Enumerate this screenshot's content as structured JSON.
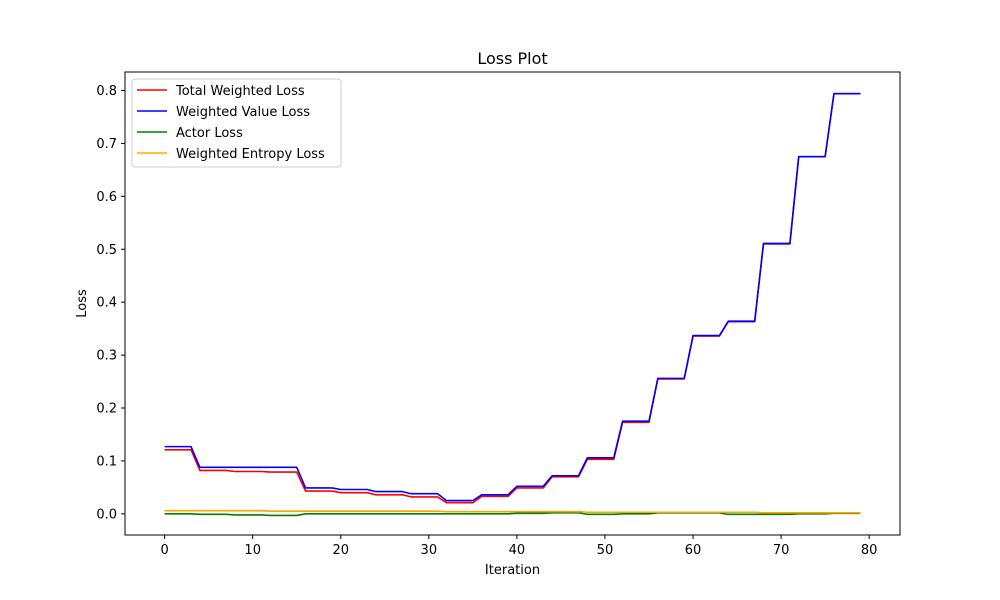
{
  "chart_data": {
    "type": "line",
    "title": "Loss Plot",
    "xlabel": "Iteration",
    "ylabel": "Loss",
    "xlim": [
      -4.5,
      83.5
    ],
    "ylim": [
      -0.04,
      0.835
    ],
    "xticks": [
      0,
      10,
      20,
      30,
      40,
      50,
      60,
      70,
      80
    ],
    "xtick_labels": [
      "0",
      "10",
      "20",
      "30",
      "40",
      "50",
      "60",
      "70",
      "80"
    ],
    "yticks": [
      0.0,
      0.1,
      0.2,
      0.3,
      0.4,
      0.5,
      0.6,
      0.7,
      0.8
    ],
    "ytick_labels": [
      "0.0",
      "0.1",
      "0.2",
      "0.3",
      "0.4",
      "0.5",
      "0.6",
      "0.7",
      "0.8"
    ],
    "grid": false,
    "legend_position": "upper-left",
    "series": [
      {
        "name": "Total Weighted Loss",
        "color": "#ff0000",
        "x": [
          0,
          3,
          4,
          7,
          8,
          11,
          12,
          15,
          16,
          19,
          20,
          23,
          24,
          27,
          28,
          31,
          32,
          35,
          36,
          39,
          40,
          43,
          44,
          47,
          48,
          51,
          52,
          55,
          56,
          59,
          60,
          63,
          64,
          67,
          68,
          71,
          72,
          75,
          76,
          79
        ],
        "y": [
          0.121,
          0.121,
          0.082,
          0.082,
          0.08,
          0.08,
          0.079,
          0.079,
          0.043,
          0.043,
          0.04,
          0.04,
          0.036,
          0.036,
          0.032,
          0.032,
          0.021,
          0.021,
          0.033,
          0.033,
          0.049,
          0.049,
          0.07,
          0.07,
          0.103,
          0.103,
          0.173,
          0.173,
          0.255,
          0.255,
          0.336,
          0.336,
          0.363,
          0.363,
          0.51,
          0.51,
          0.675,
          0.675,
          0.794,
          0.794
        ]
      },
      {
        "name": "Weighted Value Loss",
        "color": "#0000ff",
        "x": [
          0,
          3,
          4,
          7,
          8,
          11,
          12,
          15,
          16,
          19,
          20,
          23,
          24,
          27,
          28,
          31,
          32,
          35,
          36,
          39,
          40,
          43,
          44,
          47,
          48,
          51,
          52,
          55,
          56,
          59,
          60,
          63,
          64,
          67,
          68,
          71,
          72,
          75,
          76,
          79
        ],
        "y": [
          0.127,
          0.127,
          0.088,
          0.088,
          0.088,
          0.088,
          0.088,
          0.088,
          0.049,
          0.049,
          0.046,
          0.046,
          0.042,
          0.042,
          0.038,
          0.038,
          0.025,
          0.025,
          0.036,
          0.036,
          0.052,
          0.052,
          0.072,
          0.072,
          0.106,
          0.106,
          0.175,
          0.175,
          0.256,
          0.256,
          0.337,
          0.337,
          0.364,
          0.364,
          0.511,
          0.511,
          0.675,
          0.675,
          0.794,
          0.794
        ]
      },
      {
        "name": "Actor Loss",
        "color": "#008000",
        "x": [
          0,
          3,
          4,
          7,
          8,
          11,
          12,
          15,
          16,
          19,
          20,
          23,
          24,
          27,
          28,
          31,
          32,
          35,
          36,
          39,
          40,
          43,
          44,
          47,
          48,
          51,
          52,
          55,
          56,
          59,
          60,
          63,
          64,
          67,
          68,
          71,
          72,
          75,
          76,
          79
        ],
        "y": [
          0.0,
          0.0,
          -0.001,
          -0.001,
          -0.002,
          -0.002,
          -0.003,
          -0.003,
          0.0,
          0.0,
          0.0,
          0.0,
          0.0,
          0.0,
          0.0,
          0.0,
          0.0,
          0.0,
          0.0,
          0.0,
          0.001,
          0.001,
          0.002,
          0.002,
          -0.001,
          -0.001,
          0.0,
          0.0,
          0.002,
          0.002,
          0.002,
          0.002,
          -0.001,
          -0.001,
          -0.001,
          -0.001,
          0.0,
          0.0,
          0.001,
          0.001
        ]
      },
      {
        "name": "Weighted Entropy Loss",
        "color": "#ffa500",
        "x": [
          0,
          3,
          4,
          7,
          8,
          11,
          12,
          15,
          16,
          19,
          20,
          23,
          24,
          27,
          28,
          31,
          32,
          35,
          36,
          39,
          40,
          43,
          44,
          47,
          48,
          51,
          52,
          55,
          56,
          59,
          60,
          63,
          64,
          67,
          68,
          71,
          72,
          75,
          76,
          79
        ],
        "y": [
          0.006,
          0.006,
          0.006,
          0.006,
          0.006,
          0.006,
          0.005,
          0.005,
          0.005,
          0.005,
          0.005,
          0.005,
          0.005,
          0.005,
          0.005,
          0.005,
          0.004,
          0.004,
          0.004,
          0.004,
          0.004,
          0.004,
          0.004,
          0.004,
          0.003,
          0.003,
          0.003,
          0.003,
          0.003,
          0.003,
          0.003,
          0.003,
          0.003,
          0.003,
          0.002,
          0.002,
          0.002,
          0.002,
          0.002,
          0.002
        ]
      }
    ]
  }
}
